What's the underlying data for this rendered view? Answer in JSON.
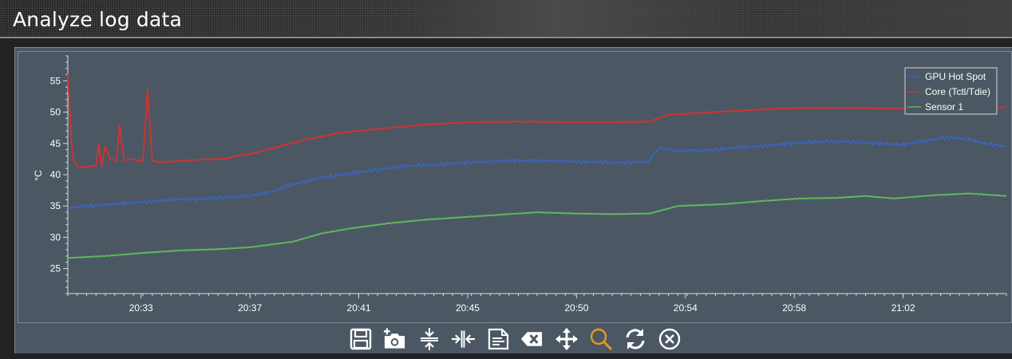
{
  "window": {
    "title": "Analyze log data"
  },
  "toolbar": {
    "buttons": [
      {
        "name": "save-icon"
      },
      {
        "name": "screenshot-icon"
      },
      {
        "name": "compress-vertical-icon"
      },
      {
        "name": "compress-horizontal-icon"
      },
      {
        "name": "export-report-icon"
      },
      {
        "name": "clear-icon"
      },
      {
        "name": "pan-icon"
      },
      {
        "name": "zoom-icon",
        "active_color": "#e8961e"
      },
      {
        "name": "refresh-icon"
      },
      {
        "name": "close-icon"
      }
    ]
  },
  "chart_data": {
    "type": "line",
    "ylabel": "°C",
    "ylim": [
      21,
      59
    ],
    "yticks": [
      25,
      30,
      35,
      40,
      45,
      50,
      55
    ],
    "xlim": [
      0,
      1000
    ],
    "x_tick_labels": [
      "20:33",
      "20:37",
      "20:41",
      "20:45",
      "20:50",
      "20:54",
      "20:58",
      "21:02"
    ],
    "x_tick_positions": [
      78,
      194,
      310,
      426,
      542,
      658,
      774,
      890
    ],
    "legend": {
      "placement": "top-right"
    },
    "series": [
      {
        "name": "GPU Hot Spot",
        "color": "#3b64b8",
        "x": [
          0,
          25,
          50,
          78,
          110,
          150,
          194,
          220,
          240,
          270,
          300,
          330,
          360,
          390,
          420,
          450,
          480,
          510,
          540,
          570,
          600,
          620,
          625,
          630,
          650,
          680,
          710,
          740,
          770,
          800,
          830,
          860,
          890,
          920,
          940,
          960,
          980,
          1000
        ],
        "y": [
          34.7,
          35,
          35.3,
          35.6,
          36,
          36.2,
          36.6,
          37.4,
          38.5,
          39.5,
          40.2,
          40.8,
          41.4,
          41.6,
          41.9,
          42.1,
          42.3,
          42.2,
          42.1,
          42,
          41.9,
          42.2,
          43.5,
          44.3,
          43.8,
          43.9,
          44.3,
          44.6,
          45,
          45.3,
          45.3,
          45,
          44.8,
          45.6,
          46,
          45.6,
          44.9,
          44.5
        ]
      },
      {
        "name": "Core (Tctl/Tdie)",
        "color": "#cc3434",
        "x": [
          0,
          2,
          5,
          10,
          18,
          30,
          33,
          36,
          40,
          45,
          52,
          55,
          60,
          68,
          80,
          85,
          90,
          100,
          120,
          140,
          160,
          170,
          180,
          194,
          220,
          250,
          290,
          330,
          380,
          430,
          480,
          540,
          560,
          580,
          620,
          640,
          700,
          760,
          820,
          880,
          940,
          1000
        ],
        "y": [
          56,
          50,
          43,
          41.2,
          41.2,
          41.4,
          45,
          41.4,
          44.5,
          42.5,
          42.2,
          48,
          42.3,
          42.5,
          42.2,
          53.5,
          42.2,
          42,
          42.2,
          42.4,
          42.5,
          42.6,
          43,
          43.3,
          44.3,
          45.5,
          46.7,
          47.3,
          48,
          48.4,
          48.5,
          48.4,
          48.4,
          48.4,
          48.5,
          49.6,
          50.1,
          50.6,
          50.7,
          50.6,
          50.6,
          50.8
        ]
      },
      {
        "name": "Sensor 1",
        "color": "#5db85b",
        "x": [
          0,
          40,
          80,
          120,
          160,
          194,
          240,
          270,
          300,
          340,
          380,
          420,
          460,
          500,
          540,
          580,
          620,
          650,
          700,
          740,
          780,
          820,
          850,
          880,
          920,
          960,
          1000
        ],
        "y": [
          26.7,
          27,
          27.5,
          27.9,
          28.1,
          28.4,
          29.3,
          30.6,
          31.4,
          32.2,
          32.8,
          33.2,
          33.6,
          34,
          33.8,
          33.7,
          33.8,
          35,
          35.3,
          35.8,
          36.2,
          36.3,
          36.6,
          36.2,
          36.7,
          37,
          36.6
        ]
      }
    ]
  }
}
